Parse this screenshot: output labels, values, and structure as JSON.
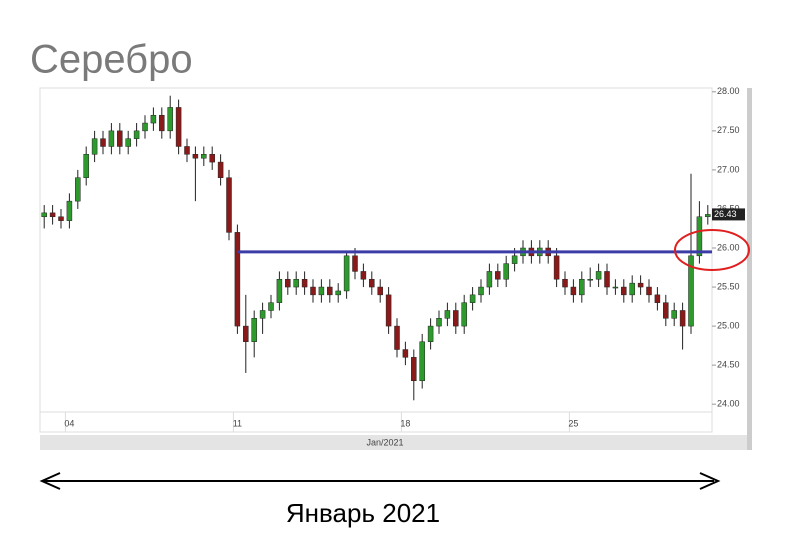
{
  "chart_data": {
    "type": "candlestick",
    "title": "Серебро",
    "x_axis_label": "Jan/2021",
    "annotation": "Январь 2021",
    "categories": [
      null,
      null,
      null,
      "04",
      null,
      null,
      null,
      null,
      null,
      null,
      null,
      null,
      null,
      null,
      null,
      null,
      null,
      null,
      null,
      null,
      null,
      null,
      null,
      "11",
      null,
      null,
      null,
      null,
      null,
      null,
      null,
      null,
      null,
      null,
      null,
      null,
      null,
      null,
      null,
      null,
      null,
      null,
      null,
      "18",
      null,
      null,
      null,
      null,
      null,
      null,
      null,
      null,
      null,
      null,
      null,
      null,
      null,
      null,
      null,
      null,
      null,
      null,
      null,
      "25",
      null,
      null,
      null,
      null,
      null,
      null,
      null,
      null,
      null,
      null,
      null,
      null,
      null,
      null,
      null,
      null
    ],
    "series": {
      "open": [
        26.4,
        26.45,
        26.4,
        26.35,
        26.6,
        26.9,
        27.2,
        27.4,
        27.3,
        27.5,
        27.3,
        27.4,
        27.5,
        27.6,
        27.7,
        27.5,
        27.8,
        27.3,
        27.2,
        27.15,
        27.2,
        27.1,
        26.9,
        26.2,
        25.0,
        24.8,
        25.1,
        25.2,
        25.3,
        25.6,
        25.5,
        25.6,
        25.5,
        25.4,
        25.5,
        25.4,
        25.45,
        25.9,
        25.7,
        25.6,
        25.5,
        25.4,
        25.0,
        24.7,
        24.6,
        24.3,
        24.8,
        25.0,
        25.1,
        25.2,
        25.0,
        25.3,
        25.4,
        25.5,
        25.7,
        25.6,
        25.8,
        25.9,
        26.0,
        25.9,
        26.0,
        25.9,
        25.6,
        25.5,
        25.4,
        25.6,
        25.6,
        25.7,
        25.5,
        25.5,
        25.4,
        25.55,
        25.5,
        25.4,
        25.3,
        25.1,
        25.2,
        25.0,
        25.9,
        26.4
      ],
      "high": [
        26.55,
        26.55,
        26.5,
        26.7,
        27.0,
        27.3,
        27.5,
        27.5,
        27.6,
        27.6,
        27.5,
        27.6,
        27.7,
        27.8,
        27.8,
        27.95,
        27.9,
        27.4,
        27.3,
        27.3,
        27.3,
        27.2,
        27.0,
        26.3,
        25.4,
        25.2,
        25.3,
        25.4,
        25.7,
        25.7,
        25.7,
        25.7,
        25.6,
        25.6,
        25.6,
        25.55,
        25.95,
        26.0,
        25.8,
        25.7,
        25.6,
        25.5,
        25.1,
        24.8,
        24.7,
        24.9,
        25.1,
        25.2,
        25.3,
        25.3,
        25.4,
        25.5,
        25.6,
        25.8,
        25.8,
        25.9,
        26.0,
        26.1,
        26.1,
        26.1,
        26.1,
        26.0,
        25.7,
        25.6,
        25.7,
        25.75,
        25.8,
        25.8,
        25.6,
        25.6,
        25.65,
        25.65,
        25.6,
        25.5,
        25.4,
        25.3,
        25.3,
        26.95,
        26.6,
        26.55
      ],
      "low": [
        26.25,
        26.3,
        26.25,
        26.25,
        26.5,
        26.8,
        27.1,
        27.2,
        27.2,
        27.2,
        27.2,
        27.3,
        27.4,
        27.5,
        27.4,
        27.4,
        27.2,
        27.1,
        26.6,
        27.05,
        27.0,
        26.8,
        26.1,
        24.9,
        24.4,
        24.6,
        24.9,
        25.1,
        25.2,
        25.4,
        25.4,
        25.4,
        25.3,
        25.3,
        25.3,
        25.3,
        25.35,
        25.6,
        25.5,
        25.4,
        25.3,
        24.9,
        24.6,
        24.5,
        24.05,
        24.2,
        24.7,
        24.9,
        25.0,
        24.9,
        24.9,
        25.2,
        25.3,
        25.4,
        25.5,
        25.5,
        25.7,
        25.8,
        25.8,
        25.8,
        25.8,
        25.5,
        25.4,
        25.3,
        25.3,
        25.5,
        25.5,
        25.4,
        25.4,
        25.3,
        25.3,
        25.4,
        25.3,
        25.2,
        25.0,
        25.0,
        24.7,
        24.9,
        25.8,
        26.3
      ],
      "close": [
        26.45,
        26.4,
        26.35,
        26.6,
        26.9,
        27.2,
        27.4,
        27.3,
        27.5,
        27.3,
        27.4,
        27.5,
        27.6,
        27.7,
        27.5,
        27.8,
        27.3,
        27.2,
        27.15,
        27.2,
        27.1,
        26.9,
        26.2,
        25.0,
        24.8,
        25.1,
        25.2,
        25.3,
        25.6,
        25.5,
        25.6,
        25.5,
        25.4,
        25.5,
        25.4,
        25.45,
        25.9,
        25.7,
        25.6,
        25.5,
        25.4,
        25.0,
        24.7,
        24.6,
        24.3,
        24.8,
        25.0,
        25.1,
        25.2,
        25.0,
        25.3,
        25.4,
        25.5,
        25.7,
        25.6,
        25.8,
        25.9,
        26.0,
        25.9,
        26.0,
        25.9,
        25.6,
        25.5,
        25.4,
        25.6,
        25.6,
        25.7,
        25.5,
        25.5,
        25.4,
        25.55,
        25.5,
        25.4,
        25.3,
        25.1,
        25.2,
        25.0,
        25.9,
        26.4,
        26.43
      ]
    },
    "up_color": "#2e9a2e",
    "down_color": "#8a1a1a",
    "ylim": [
      23.9,
      28.1
    ],
    "yticks": [
      {
        "value": 24,
        "label": "24.00"
      },
      {
        "value": 24.5,
        "label": "24.50"
      },
      {
        "value": 25,
        "label": "25.00"
      },
      {
        "value": 25.5,
        "label": "25.50"
      },
      {
        "value": 26,
        "label": "26.00"
      },
      {
        "value": 26.5,
        "label": "26.50"
      },
      {
        "value": 27,
        "label": "27.00"
      },
      {
        "value": 27.5,
        "label": "27.50"
      },
      {
        "value": 28,
        "label": "28.00"
      }
    ],
    "last_price": {
      "value": 26.43,
      "label": "26.43"
    },
    "reference_line": {
      "value": 25.95,
      "color": "#3c3ca8"
    },
    "grid": false
  }
}
